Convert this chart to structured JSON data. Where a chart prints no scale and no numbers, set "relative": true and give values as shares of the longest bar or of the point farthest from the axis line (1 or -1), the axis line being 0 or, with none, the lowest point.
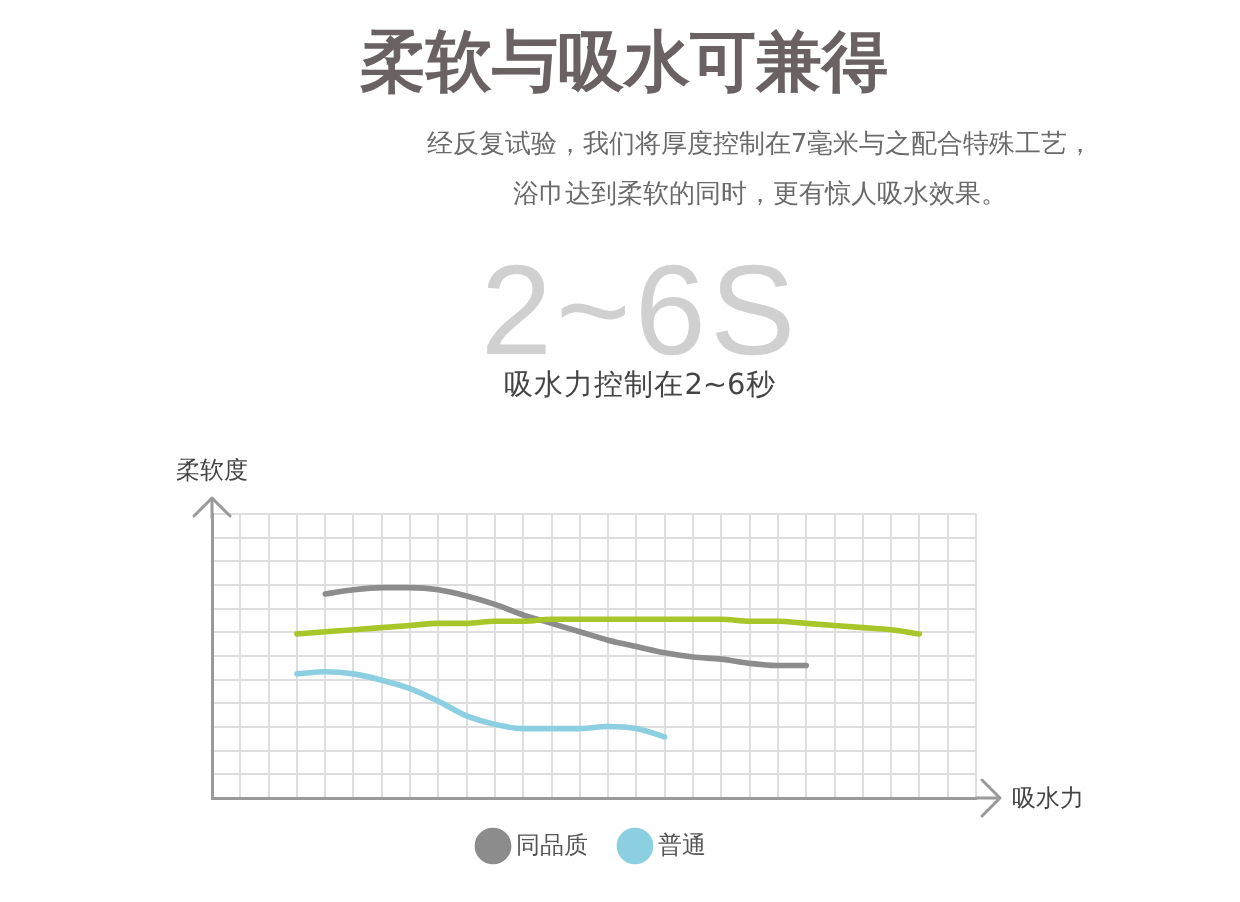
{
  "chart_data": {
    "type": "line",
    "title": "柔软与吸水可兼得",
    "subtitle": "经反复试验，我们将厚度控制在7毫米与之配合特殊工艺，浴巾达到柔软的同时，更有惊人吸水效果。",
    "annotations": [
      "2~6S",
      "吸水力控制在2~6秒"
    ],
    "xlabel": "吸水力",
    "ylabel": "柔软度",
    "relative": true,
    "grid": true,
    "legend": "bottom",
    "categories": [
      null,
      null,
      null,
      null,
      null,
      null,
      null,
      null,
      null,
      null,
      null,
      null,
      null,
      null,
      null,
      null,
      null,
      null,
      null,
      null,
      null,
      null,
      null,
      null,
      null,
      null,
      null,
      null
    ],
    "series": [
      {
        "color": "#a8c62a",
        "values": [
          null,
          null,
          null,
          0.78,
          0.79,
          0.8,
          0.81,
          0.82,
          0.83,
          0.83,
          0.84,
          0.84,
          0.85,
          0.85,
          0.85,
          0.85,
          0.85,
          0.85,
          0.85,
          0.84,
          0.84,
          0.83,
          0.82,
          0.81,
          0.8,
          0.78,
          null,
          null
        ]
      },
      {
        "name": "同品质",
        "color": "#8c8c8c",
        "values": [
          null,
          null,
          null,
          null,
          0.97,
          0.99,
          1,
          1,
          0.99,
          0.96,
          0.92,
          0.87,
          0.83,
          0.79,
          0.75,
          0.72,
          0.69,
          0.67,
          0.66,
          0.64,
          0.63,
          0.63,
          null,
          null,
          null,
          null,
          null,
          null
        ]
      },
      {
        "name": "普通",
        "color": "#8ccfe0",
        "values": [
          null,
          null,
          null,
          0.59,
          0.6,
          0.59,
          0.56,
          0.52,
          0.46,
          0.39,
          0.35,
          0.33,
          0.33,
          0.33,
          0.34,
          0.33,
          0.29,
          null,
          null,
          null,
          null,
          null,
          null,
          null,
          null,
          null,
          null,
          null
        ]
      }
    ]
  }
}
